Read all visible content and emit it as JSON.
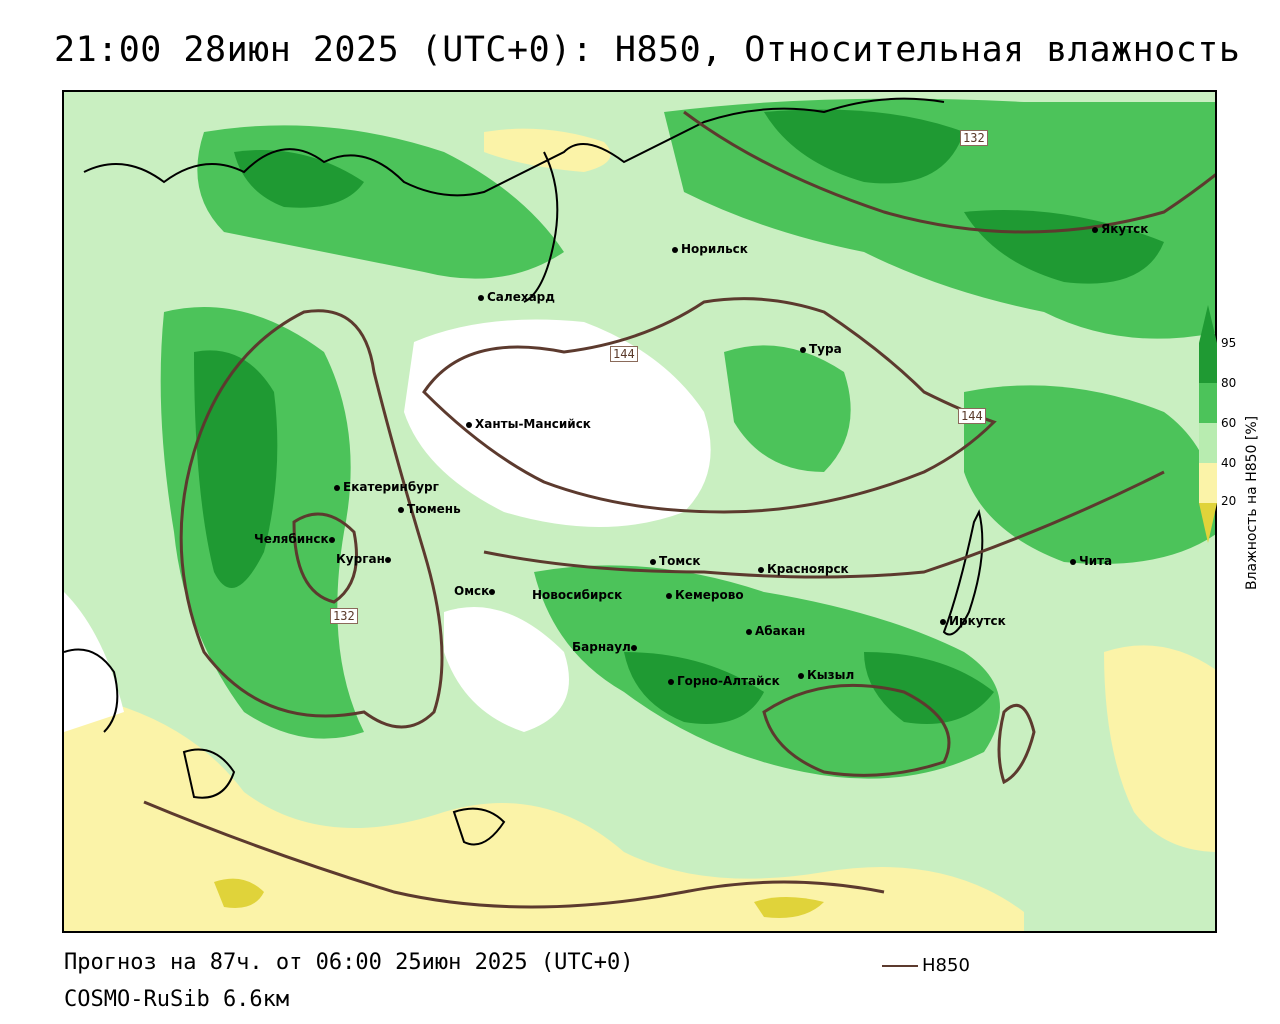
{
  "title": "21:00 28июн 2025 (UTC+0): H850, Относительная влажность",
  "footer": {
    "forecast": "Прогноз на 87ч. от 06:00 25июн 2025 (UTC+0)",
    "model": "COSMO-RuSib 6.6км"
  },
  "legend": {
    "line_label": "H850",
    "line_color": "#5c3a2e"
  },
  "colorbar": {
    "title": "Влажность на H850 [%]",
    "ticks": [
      "95",
      "80",
      "60",
      "40",
      "20"
    ],
    "colors": {
      "very_humid": "#1f9a33",
      "humid": "#4cc35a",
      "moist": "#b8ecb0",
      "neutral": "#ffffff",
      "dry": "#fbf3a8",
      "very_dry": "#e0d33a"
    }
  },
  "contour_labels": [
    "132",
    "144",
    "144",
    "132"
  ],
  "cities": [
    {
      "name": "Норильск"
    },
    {
      "name": "Якутск"
    },
    {
      "name": "Салехард"
    },
    {
      "name": "Тура"
    },
    {
      "name": "Ханты-Мансийск"
    },
    {
      "name": "Екатеринбург"
    },
    {
      "name": "Тюмень"
    },
    {
      "name": "Челябинск"
    },
    {
      "name": "Курган"
    },
    {
      "name": "Омск"
    },
    {
      "name": "Новосибирск"
    },
    {
      "name": "Томск"
    },
    {
      "name": "Кемерово"
    },
    {
      "name": "Красноярск"
    },
    {
      "name": "Абакан"
    },
    {
      "name": "Барнаул"
    },
    {
      "name": "Горно-Алтайск"
    },
    {
      "name": "Кызыл"
    },
    {
      "name": "Иркутск"
    },
    {
      "name": "Чита"
    }
  ]
}
